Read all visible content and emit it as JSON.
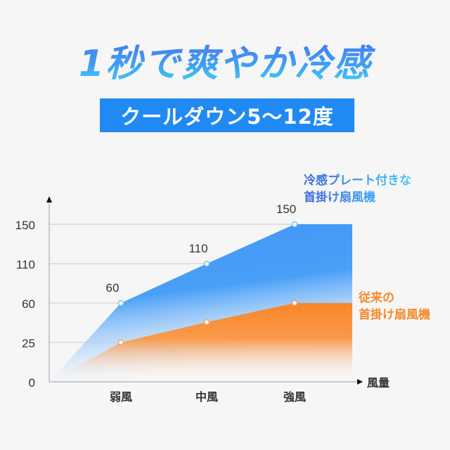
{
  "header": {
    "title": "1秒で爽やか冷感",
    "badge": "クールダウン5〜12度"
  },
  "colors": {
    "blue": "#3f95f5",
    "orange": "#f8862a",
    "badge": "#2189f2"
  },
  "chart_data": {
    "type": "area",
    "title": "",
    "xlabel": "風量",
    "ylabel": "",
    "categories": [
      "",
      "弱風",
      "中風",
      "強風",
      ""
    ],
    "y_ticks": [
      0,
      25,
      60,
      110,
      150
    ],
    "y_scale": "tick-indexed (evenly spaced ticks)",
    "grid": true,
    "legend_placement": "right",
    "series": [
      {
        "name": "冷感プレート付きな首掛け扇風機",
        "color": "#3f95f5",
        "values": [
          0,
          60,
          110,
          150,
          150
        ],
        "labels": [
          "",
          "60",
          "110",
          "150",
          ""
        ]
      },
      {
        "name": "従来の首掛け扇風機",
        "color": "#f8862a",
        "values": [
          0,
          25,
          43,
          60,
          60
        ],
        "labels": [
          "",
          "",
          "",
          "",
          ""
        ]
      }
    ],
    "legend": {
      "blue_line1": "冷感プレート付きな",
      "blue_line2": "首掛け扇風機",
      "orange_line1": "従来の",
      "orange_line2": "首掛け扇風機"
    }
  }
}
